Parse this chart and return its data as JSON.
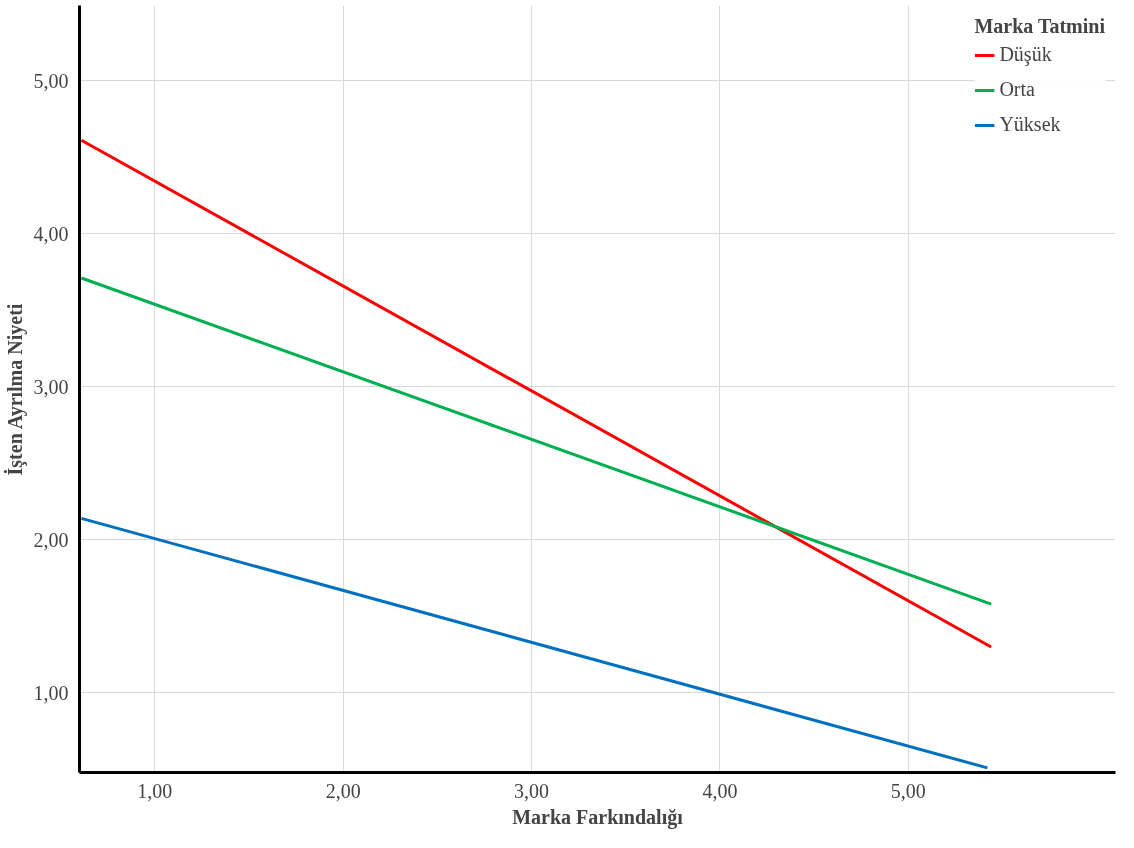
{
  "chart_data": {
    "type": "line",
    "xlabel": "Marka Farkındalığı",
    "ylabel": "İşten Ayrılma Niyeti",
    "legend_title": "Marka Tatmini",
    "xlim": [
      0.6,
      6.1
    ],
    "ylim": [
      0.48,
      5.49
    ],
    "xticks": [
      {
        "value": 1,
        "label": "1,00"
      },
      {
        "value": 2,
        "label": "2,00"
      },
      {
        "value": 3,
        "label": "3,00"
      },
      {
        "value": 4,
        "label": "4,00"
      },
      {
        "value": 5,
        "label": "5,00"
      }
    ],
    "yticks": [
      {
        "value": 1,
        "label": "1,00"
      },
      {
        "value": 2,
        "label": "2,00"
      },
      {
        "value": 3,
        "label": "3,00"
      },
      {
        "value": 4,
        "label": "4,00"
      },
      {
        "value": 5,
        "label": "5,00"
      }
    ],
    "grid": true,
    "legend": "top right",
    "marker": "none",
    "line_style": "solid",
    "series": [
      {
        "name": "Düşük",
        "color": "#ff0000",
        "x": [
          0.61,
          5.44
        ],
        "values": [
          4.61,
          1.3
        ]
      },
      {
        "name": "Orta",
        "color": "#00b050",
        "x": [
          0.61,
          5.44
        ],
        "values": [
          3.71,
          1.58
        ]
      },
      {
        "name": "Yüksek",
        "color": "#0070c0",
        "x": [
          0.61,
          5.42
        ],
        "values": [
          2.14,
          0.51
        ]
      }
    ]
  }
}
